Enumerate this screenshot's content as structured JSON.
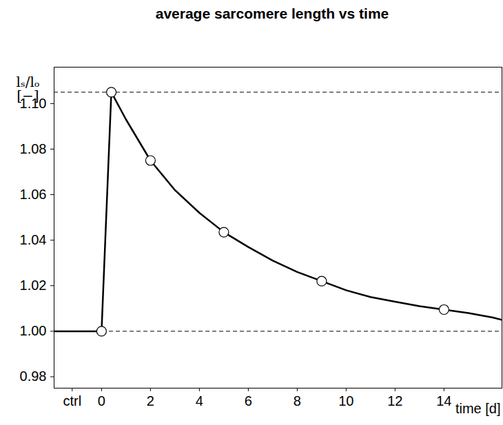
{
  "chart_data": {
    "type": "line",
    "title": "average sarcomere length vs time",
    "xlabel": "time [d]",
    "ylabel": "lₛ/lₒ\n[−]",
    "x": [
      -1.94,
      0,
      0.4,
      1,
      2,
      3,
      4,
      5,
      6,
      7,
      8,
      9,
      10,
      11,
      12,
      13,
      14,
      15,
      16,
      16.37
    ],
    "values": [
      1.0,
      1.0,
      1.105,
      1.093,
      1.075,
      1.062,
      1.052,
      1.0435,
      1.037,
      1.031,
      1.026,
      1.022,
      1.018,
      1.015,
      1.013,
      1.011,
      1.0095,
      1.008,
      1.006,
      1.005
    ],
    "color": "#000000",
    "markers": {
      "x": [
        0,
        0.4,
        2,
        5,
        9,
        14
      ],
      "values": [
        1.0,
        1.105,
        1.075,
        1.0435,
        1.022,
        1.0095
      ]
    },
    "marker": "circle",
    "hlines": [
      1.105,
      1.0
    ],
    "xlim": [
      -1.94,
      16.37
    ],
    "ylim": [
      0.975,
      1.116
    ],
    "xticks": [
      {
        "value": -1.2,
        "label": "ctrl"
      },
      0,
      2,
      4,
      6,
      8,
      10,
      12,
      14
    ],
    "yticks": [
      0.98,
      {
        "value": 1.0,
        "label": "1.00"
      },
      1.02,
      1.04,
      1.06,
      1.08,
      {
        "value": 1.1,
        "label": "1.10"
      }
    ],
    "grid": false
  }
}
